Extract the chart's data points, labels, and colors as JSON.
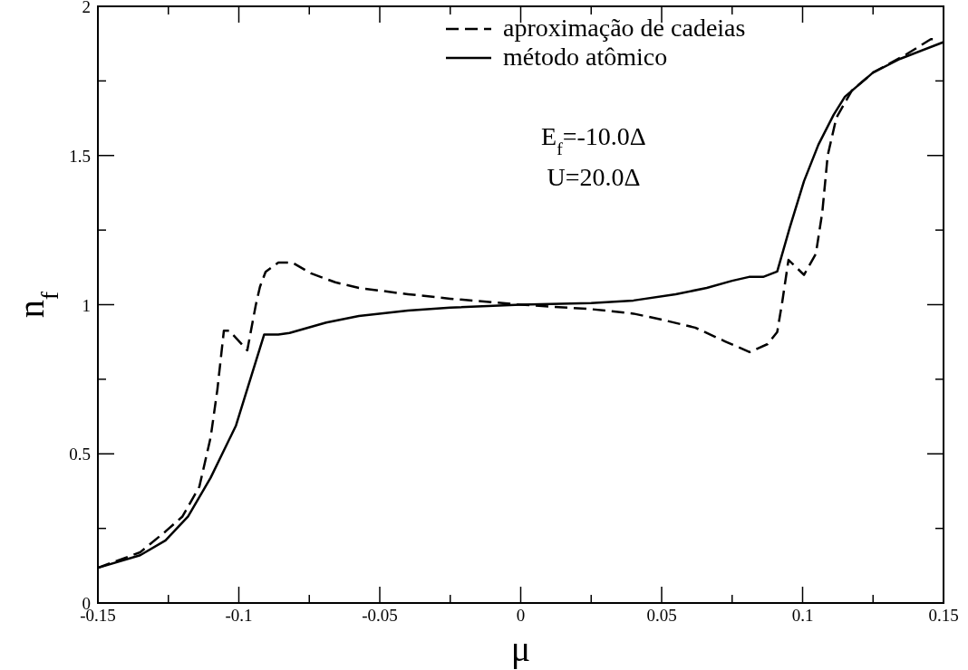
{
  "chart_data": {
    "type": "line",
    "xlabel": "μ",
    "ylabel": "n$_{f}$",
    "xlim": [
      -0.15,
      0.15
    ],
    "ylim": [
      0,
      2
    ],
    "xticks": [
      -0.15,
      {
        "value": -0.125,
        "label": null
      },
      -0.1,
      {
        "value": -0.075,
        "label": null
      },
      -0.05,
      {
        "value": -0.025,
        "label": null
      },
      0,
      {
        "value": 0.025,
        "label": null
      },
      0.05,
      {
        "value": 0.075,
        "label": null
      },
      0.1,
      {
        "value": 0.125,
        "label": null
      },
      0.15
    ],
    "yticks": [
      0,
      {
        "value": 0.25,
        "label": null
      },
      0.5,
      {
        "value": 0.75,
        "label": null
      },
      1,
      {
        "value": 1.25,
        "label": null
      },
      1.5,
      {
        "value": 1.75,
        "label": null
      },
      2
    ],
    "legend": "top",
    "grid": false,
    "marker": "none",
    "annotations": [
      "E$_{f}$=-10.0Δ",
      "U=20.0Δ"
    ],
    "series": [
      {
        "name": "aproximação de cadeias",
        "color": "#000000",
        "line_style": "dashed",
        "x": [
          -0.15,
          -0.135,
          -0.126,
          -0.12,
          -0.114,
          -0.11,
          -0.1076,
          -0.1053,
          -0.1034,
          -0.097,
          -0.094,
          -0.0925,
          -0.0905,
          -0.086,
          -0.081,
          -0.0744,
          -0.0658,
          -0.0574,
          -0.04,
          -0.025,
          0,
          0.025,
          0.04,
          0.05,
          0.0619,
          0.0725,
          0.0812,
          0.0876,
          0.091,
          0.0928,
          0.095,
          0.1005,
          0.1047,
          0.107,
          0.1089,
          0.112,
          0.1175,
          0.125,
          0.1368,
          0.1455,
          0.148
        ],
        "values": [
          0.118,
          0.17,
          0.24,
          0.29,
          0.39,
          0.555,
          0.716,
          0.913,
          0.913,
          0.847,
          0.998,
          1.06,
          1.11,
          1.141,
          1.141,
          1.105,
          1.075,
          1.056,
          1.035,
          1.02,
          1.0,
          0.985,
          0.97,
          0.95,
          0.923,
          0.877,
          0.841,
          0.868,
          0.908,
          1.01,
          1.15,
          1.1,
          1.17,
          1.31,
          1.5,
          1.627,
          1.718,
          1.778,
          1.839,
          1.89,
          1.89
        ]
      },
      {
        "name": "método atômico",
        "color": "#000000",
        "line_style": "solid",
        "x": [
          -0.15,
          -0.135,
          -0.126,
          -0.118,
          -0.11,
          -0.101,
          -0.091,
          -0.086,
          -0.082,
          -0.069,
          -0.0574,
          -0.04,
          -0.025,
          0,
          0.025,
          0.04,
          0.055,
          0.066,
          0.075,
          0.081,
          0.086,
          0.091,
          0.0955,
          0.1005,
          0.1056,
          0.111,
          0.115,
          0.125,
          0.1346,
          0.15
        ],
        "values": [
          0.118,
          0.16,
          0.21,
          0.29,
          0.42,
          0.595,
          0.9,
          0.9,
          0.905,
          0.94,
          0.962,
          0.98,
          0.99,
          1.0,
          1.005,
          1.014,
          1.035,
          1.056,
          1.08,
          1.093,
          1.093,
          1.111,
          1.26,
          1.414,
          1.536,
          1.636,
          1.697,
          1.778,
          1.824,
          1.88
        ]
      }
    ]
  }
}
